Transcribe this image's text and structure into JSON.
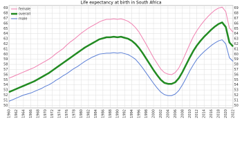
{
  "chart_data": {
    "type": "line",
    "title": "Life expectancy at birth in South Africa",
    "x": [
      1960,
      1961,
      1962,
      1963,
      1964,
      1965,
      1966,
      1967,
      1968,
      1969,
      1970,
      1971,
      1972,
      1973,
      1974,
      1975,
      1976,
      1977,
      1978,
      1979,
      1980,
      1981,
      1982,
      1983,
      1984,
      1985,
      1986,
      1987,
      1988,
      1989,
      1990,
      1991,
      1992,
      1993,
      1994,
      1995,
      1996,
      1997,
      1998,
      1999,
      2000,
      2001,
      2002,
      2003,
      2004,
      2005,
      2006,
      2007,
      2008,
      2009,
      2010,
      2011,
      2012,
      2013,
      2014,
      2015,
      2016,
      2017,
      2018,
      2019,
      2020,
      2021,
      2022
    ],
    "series": [
      {
        "name": "female",
        "color": "#f080b0",
        "width": 1,
        "values": [
          55.3,
          55.6,
          55.9,
          56.2,
          56.5,
          56.8,
          57.1,
          57.4,
          57.8,
          58.2,
          58.6,
          59.0,
          59.5,
          60.1,
          60.6,
          61.1,
          61.8,
          62.4,
          62.9,
          63.5,
          64.1,
          64.6,
          65.1,
          65.5,
          65.9,
          66.3,
          66.6,
          66.8,
          66.8,
          66.9,
          66.8,
          66.9,
          66.7,
          66.4,
          65.9,
          65.2,
          64.3,
          63.1,
          61.9,
          60.6,
          59.3,
          58.2,
          57.1,
          56.4,
          56.1,
          56.0,
          56.4,
          57.3,
          58.7,
          60.3,
          61.9,
          63.4,
          64.6,
          65.6,
          66.5,
          67.3,
          68.0,
          68.6,
          69.0,
          69.2,
          68.3,
          65.1,
          64.3
        ]
      },
      {
        "name": "overall",
        "color": "#228b22",
        "width": 2.5,
        "values": [
          52.6,
          52.9,
          53.2,
          53.5,
          53.8,
          54.1,
          54.4,
          54.7,
          55.1,
          55.5,
          55.9,
          56.3,
          56.8,
          57.3,
          57.8,
          58.3,
          58.8,
          59.3,
          59.8,
          60.3,
          60.8,
          61.3,
          61.7,
          62.1,
          62.5,
          62.9,
          63.1,
          63.3,
          63.3,
          63.4,
          63.3,
          63.4,
          63.2,
          63.0,
          62.6,
          62.0,
          61.2,
          60.2,
          59.1,
          58.0,
          56.9,
          55.9,
          55.0,
          54.4,
          54.2,
          54.2,
          54.5,
          55.3,
          56.5,
          57.9,
          59.3,
          60.6,
          61.7,
          62.6,
          63.4,
          64.1,
          64.8,
          65.4,
          65.9,
          66.2,
          65.3,
          62.3,
          61.5
        ]
      },
      {
        "name": "male",
        "color": "#5b7fd6",
        "width": 1,
        "values": [
          50.8,
          51.1,
          51.4,
          51.7,
          52.0,
          52.2,
          52.4,
          52.7,
          53.0,
          53.3,
          53.7,
          54.0,
          54.4,
          54.9,
          55.3,
          55.8,
          56.2,
          56.7,
          57.2,
          57.6,
          58.1,
          58.6,
          59.0,
          59.4,
          59.7,
          60.0,
          60.1,
          60.2,
          60.2,
          60.3,
          60.2,
          60.3,
          60.1,
          59.9,
          59.5,
          59.0,
          58.2,
          57.3,
          56.3,
          55.3,
          54.3,
          53.4,
          52.6,
          52.1,
          51.9,
          51.9,
          52.2,
          52.9,
          54.0,
          55.3,
          56.7,
          57.9,
          59.0,
          59.8,
          60.5,
          61.1,
          61.7,
          62.2,
          62.6,
          62.8,
          62.0,
          59.3,
          58.6
        ]
      }
    ],
    "xlim": [
      1960,
      2022
    ],
    "xticks": [
      1960,
      1962,
      1964,
      1966,
      1968,
      1970,
      1972,
      1974,
      1976,
      1978,
      1980,
      1982,
      1984,
      1986,
      1988,
      1990,
      1992,
      1994,
      1996,
      1998,
      2000,
      2002,
      2004,
      2006,
      2008,
      2010,
      2012,
      2014,
      2016,
      2018,
      2020,
      2022
    ],
    "ylim": [
      49.5,
      69.5
    ],
    "yticks": [
      50,
      51,
      52,
      53,
      54,
      55,
      56,
      57,
      58,
      59,
      60,
      61,
      62,
      63,
      64,
      65,
      66,
      67,
      68,
      69
    ],
    "grid": true,
    "legend": "upper left"
  }
}
